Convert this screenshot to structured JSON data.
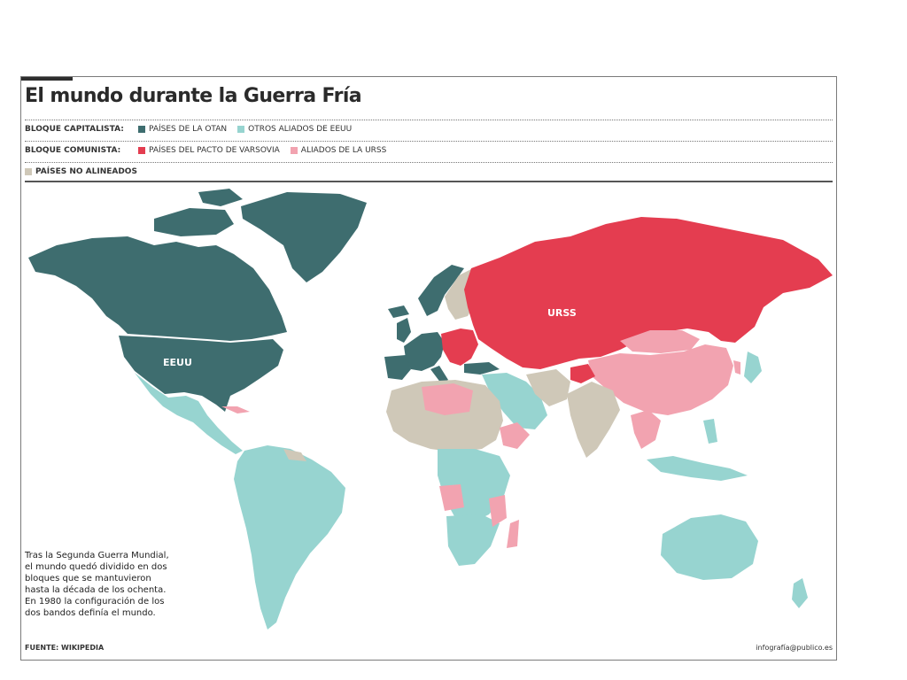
{
  "title": "El mundo durante la Guerra Fría",
  "legend": {
    "capitalist": {
      "label": "BLOQUE CAPITALISTA:",
      "items": [
        {
          "label": "PAÍSES DE LA OTAN",
          "color": "#3e6d6f"
        },
        {
          "label": "OTROS ALIADOS DE EEUU",
          "color": "#97d4d0"
        }
      ]
    },
    "communist": {
      "label": "BLOQUE COMUNISTA:",
      "items": [
        {
          "label": "PAÍSES DEL PACTO DE VARSOVIA",
          "color": "#e43d50"
        },
        {
          "label": "ALIADOS DE LA URSS",
          "color": "#f2a3b0"
        }
      ]
    },
    "non_aligned": {
      "label": "PAÍSES NO ALINEADOS",
      "color": "#cfc8b8"
    }
  },
  "map": {
    "labels": {
      "usa": "EEUU",
      "ussr": "URSS"
    },
    "colors": {
      "nato": "#3e6d6f",
      "us_allies": "#97d4d0",
      "warsaw": "#e43d50",
      "ussr_allies": "#f2a3b0",
      "non_aligned": "#cfc8b8"
    }
  },
  "note": "Tras la Segunda Guerra Mundial,\nel mundo quedó dividido en dos\nbloques que se mantuvieron\nhasta la década de los ochenta.\nEn 1980 la configuración de los\ndos bandos definía el mundo.",
  "footer": {
    "source": "FUENTE: WIKIPEDIA",
    "credit": "infografía@publico.es"
  }
}
